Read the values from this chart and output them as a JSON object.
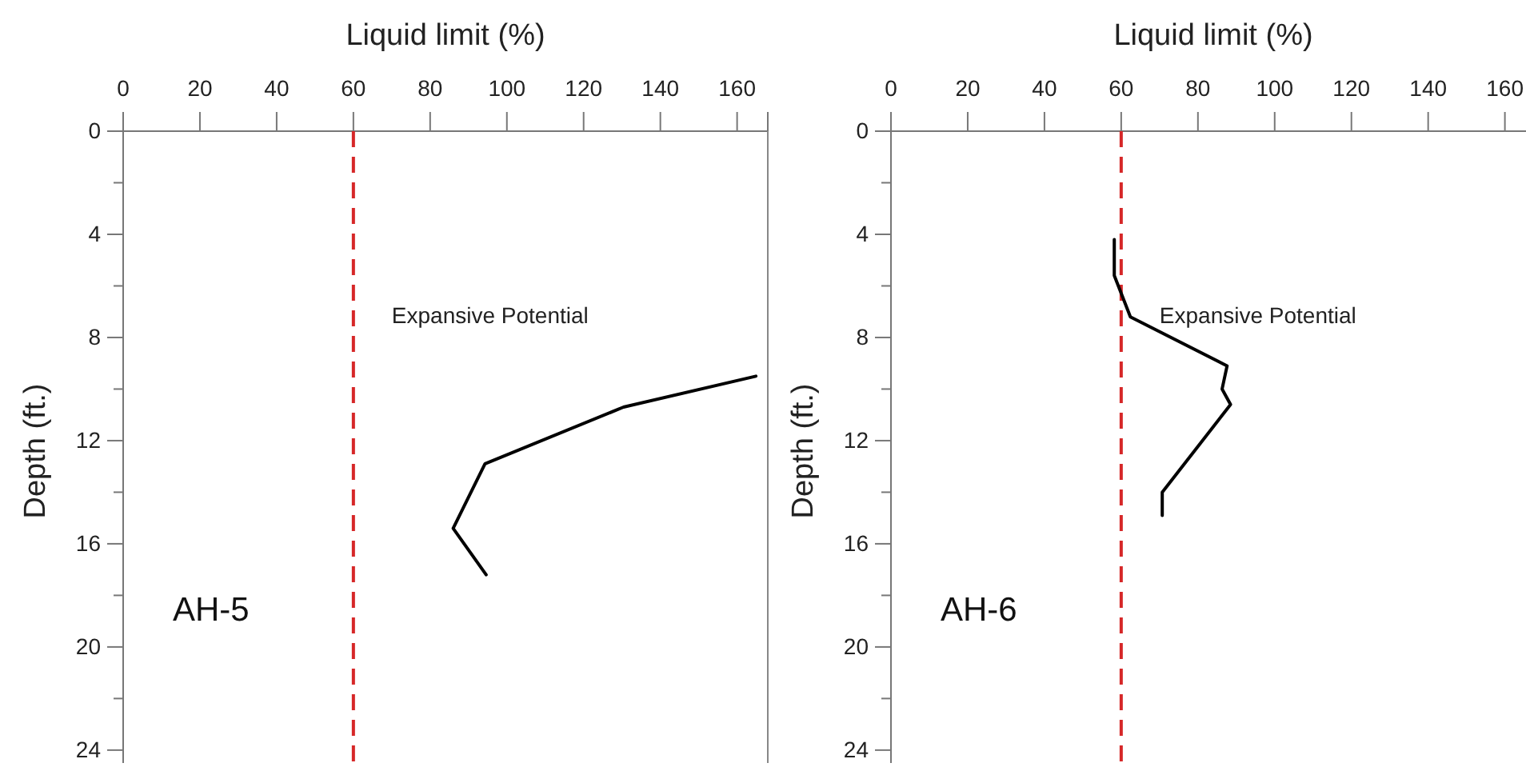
{
  "chart_data": [
    {
      "type": "line",
      "xlabel": "Liquid limit (%)",
      "ylabel": "Depth (ft.)",
      "xlim": [
        0,
        168
      ],
      "xticks": [
        0,
        20,
        40,
        60,
        80,
        100,
        120,
        140,
        160
      ],
      "ylim": [
        24.5,
        0
      ],
      "yticks": [
        0,
        {
          "value": 2,
          "label": null
        },
        4,
        {
          "value": 6,
          "label": null
        },
        8,
        {
          "value": 10,
          "label": null
        },
        12,
        {
          "value": 14,
          "label": null
        },
        16,
        {
          "value": 18,
          "label": null
        },
        20,
        {
          "value": 22,
          "label": null
        },
        24
      ],
      "marker": "none",
      "series": [
        {
          "color": "#000000",
          "x": [
            164.9,
            130.4,
            94.3,
            86,
            94.6
          ],
          "values": [
            9.5,
            10.7,
            12.9,
            15.4,
            17.2
          ]
        }
      ],
      "ref_lines": [
        {
          "axis": "x",
          "value": 60,
          "label": "Expansive Potential",
          "color": "#d62728",
          "line_style": "dashed"
        }
      ],
      "annotations": [
        "AH-5"
      ]
    },
    {
      "type": "line",
      "xlabel": "Liquid limit (%)",
      "ylabel": "Depth (ft.)",
      "xlim": [
        0,
        168
      ],
      "xticks": [
        0,
        20,
        40,
        60,
        80,
        100,
        120,
        140,
        160
      ],
      "ylim": [
        24.5,
        0
      ],
      "yticks": [
        0,
        {
          "value": 2,
          "label": null
        },
        4,
        {
          "value": 6,
          "label": null
        },
        8,
        {
          "value": 10,
          "label": null
        },
        12,
        {
          "value": 14,
          "label": null
        },
        16,
        {
          "value": 18,
          "label": null
        },
        20,
        {
          "value": 22,
          "label": null
        },
        24
      ],
      "marker": "none",
      "series": [
        {
          "color": "#000000",
          "x": [
            58.2,
            58.2,
            62.4,
            87.6,
            86.3,
            88.5,
            70.7,
            70.7
          ],
          "values": [
            4.2,
            5.6,
            7.2,
            9.1,
            10.0,
            10.6,
            14.0,
            14.9
          ]
        }
      ],
      "ref_lines": [
        {
          "axis": "x",
          "value": 60,
          "label": "Expansive Potential",
          "color": "#d62728",
          "line_style": "dashed"
        }
      ],
      "annotations": [
        "AH-6"
      ]
    }
  ]
}
